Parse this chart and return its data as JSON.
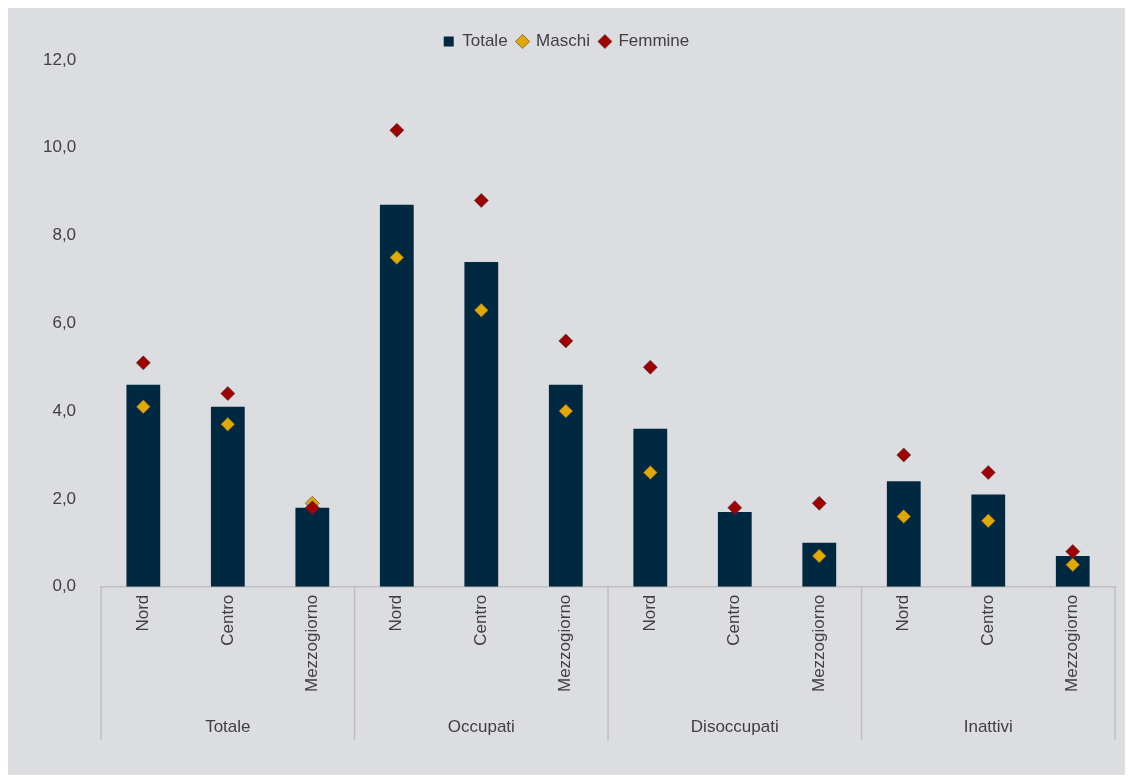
{
  "chart_data": {
    "type": "bar",
    "categories": [
      "Nord",
      "Centro",
      "Mezzogiorno",
      "Nord",
      "Centro",
      "Mezzogiorno",
      "Nord",
      "Centro",
      "Mezzogiorno",
      "Nord",
      "Centro",
      "Mezzogiorno"
    ],
    "series": [
      {
        "name": "Totale",
        "color": "#002840",
        "values": [
          4.6,
          4.1,
          1.8,
          8.7,
          7.4,
          4.6,
          3.6,
          1.7,
          1.0,
          2.4,
          2.1,
          0.7
        ]
      },
      {
        "name": "Maschi",
        "type": "scatter",
        "color": "#e0a800",
        "values": [
          4.1,
          3.7,
          1.9,
          7.5,
          6.3,
          4.0,
          2.6,
          null,
          0.7,
          1.6,
          1.5,
          0.5
        ]
      },
      {
        "name": "Femmine",
        "type": "scatter",
        "color": "#a00000",
        "values": [
          5.1,
          4.4,
          1.8,
          10.4,
          8.8,
          5.6,
          5.0,
          1.8,
          1.9,
          3.0,
          2.6,
          0.8
        ]
      }
    ],
    "annotations": [
      "Totale",
      "Occupati",
      "Disoccupati",
      "Inattivi"
    ],
    "ylim": [
      0,
      12
    ],
    "yticks": [
      {
        "value": 0,
        "label": "0,0"
      },
      {
        "value": 2,
        "label": "2,0"
      },
      {
        "value": 4,
        "label": "4,0"
      },
      {
        "value": 6,
        "label": "6,0"
      },
      {
        "value": 8,
        "label": "8,0"
      },
      {
        "value": 10,
        "label": "10,0"
      },
      {
        "value": 12,
        "label": "12,0"
      }
    ],
    "grid": false,
    "legend": "top",
    "marker": "diamond"
  }
}
